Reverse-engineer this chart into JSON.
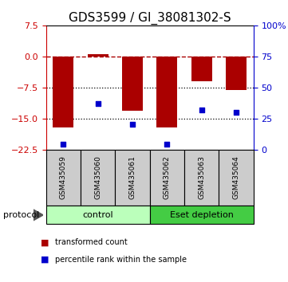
{
  "title": "GDS3599 / GI_38081302-S",
  "samples": [
    "GSM435059",
    "GSM435060",
    "GSM435061",
    "GSM435062",
    "GSM435063",
    "GSM435064"
  ],
  "red_bars": [
    -17.2,
    0.5,
    -13.2,
    -17.1,
    -6.0,
    -8.2
  ],
  "blue_pct": [
    4,
    37,
    20,
    4,
    32,
    30
  ],
  "ylim_left": [
    -22.5,
    7.5
  ],
  "ylim_right": [
    0,
    100
  ],
  "left_yticks": [
    7.5,
    0,
    -7.5,
    -15,
    -22.5
  ],
  "right_yticks": [
    100,
    75,
    50,
    25,
    0
  ],
  "right_ytick_labels": [
    "100%",
    "75",
    "50",
    "25",
    "0"
  ],
  "hline_dashed": 0,
  "hlines_dotted": [
    -7.5,
    -15
  ],
  "bar_color": "#aa0000",
  "dot_color": "#0000cc",
  "bar_width": 0.6,
  "protocol_groups": [
    {
      "label": "control",
      "samples": [
        0,
        1,
        2
      ],
      "color": "#aaffaa"
    },
    {
      "label": "Eset depletion",
      "samples": [
        3,
        4,
        5
      ],
      "color": "#44cc44"
    }
  ],
  "protocol_label": "protocol",
  "legend_red": "transformed count",
  "legend_blue": "percentile rank within the sample",
  "left_axis_color": "#cc0000",
  "right_axis_color": "#0000cc",
  "title_fontsize": 11,
  "tick_fontsize": 8,
  "bg_xtick": "#cccccc",
  "control_color": "#bbffbb",
  "eset_color": "#44cc44"
}
